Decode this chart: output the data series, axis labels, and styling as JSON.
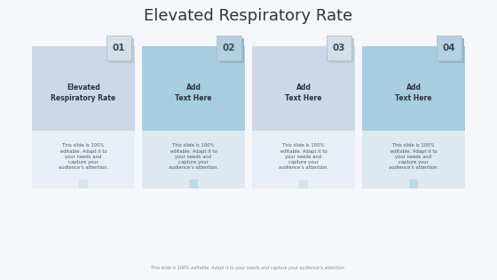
{
  "title": "Elevated Respiratory Rate",
  "title_fontsize": 13,
  "background_color": "#f5f7fa",
  "cards": [
    {
      "number": "01",
      "header_text": "Elevated\nRespiratory Rate",
      "body_text": "This slide is 100%\neditable. Adapt it to\nyour needs and\ncapture your\naudience’s attention.",
      "upper_bg": "#ccd8e8",
      "lower_bg": "#e8eef5",
      "num_box_bg": "#d5dfe8",
      "num_shadow_bg": "#bccad6"
    },
    {
      "number": "02",
      "header_text": "Add\nText Here",
      "body_text": "This slide is 100%\neditable. Adapt it to\nyour needs and\ncapture your\naudience’s attention.",
      "upper_bg": "#a8cce0",
      "lower_bg": "#dde8f0",
      "num_box_bg": "#b5d0e0",
      "num_shadow_bg": "#90b8cc"
    },
    {
      "number": "03",
      "header_text": "Add\nText Here",
      "body_text": "This slide is 100%\neditable. Adapt it to\nyour needs and\ncapture your\naudience’s attention.",
      "upper_bg": "#ccd8e8",
      "lower_bg": "#e8eef5",
      "num_box_bg": "#d5dfe8",
      "num_shadow_bg": "#bccad6"
    },
    {
      "number": "04",
      "header_text": "Add\nText Here",
      "body_text": "This slide is 100%\neditable. Adapt it to\nyour needs and\ncapture your\naudience’s attention.",
      "upper_bg": "#a8cce0",
      "lower_bg": "#dde8f0",
      "num_box_bg": "#b5d0e0",
      "num_shadow_bg": "#90b8cc"
    }
  ],
  "footer_text": "This slide is 100% editable. Adapt it to your needs and capture your audience’s attention.",
  "text_color": "#3a4a58",
  "number_color": "#3a4a58"
}
